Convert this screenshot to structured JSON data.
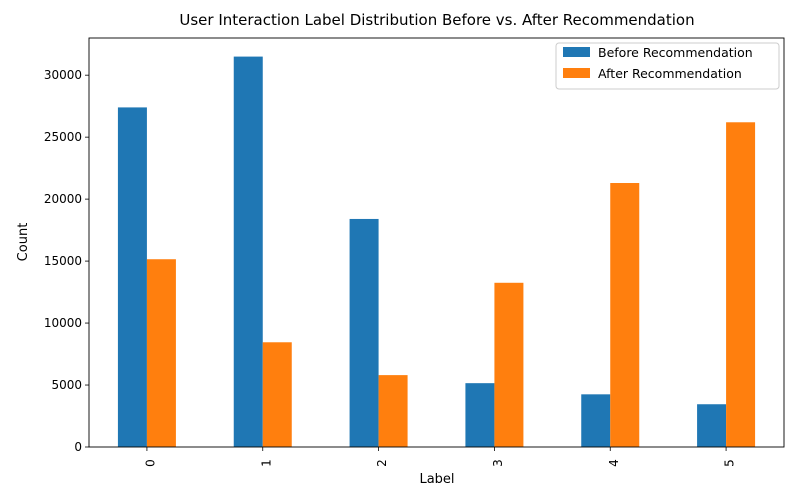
{
  "chart_data": {
    "type": "bar",
    "title": "User Interaction Label Distribution Before vs. After Recommendation",
    "xlabel": "Label",
    "ylabel": "Count",
    "categories": [
      "0",
      "1",
      "2",
      "3",
      "4",
      "5"
    ],
    "series": [
      {
        "name": "Before Recommendation",
        "values": [
          27400,
          31500,
          18400,
          5150,
          4250,
          3450
        ],
        "color": "#1f77b4"
      },
      {
        "name": "After Recommendation",
        "values": [
          15150,
          8450,
          5800,
          13250,
          21300,
          26200
        ],
        "color": "#ff7f0e"
      }
    ],
    "ylim": [
      0,
      33000
    ],
    "yticks": [
      0,
      5000,
      10000,
      15000,
      20000,
      25000,
      30000
    ],
    "grid": false,
    "legend": "top-right",
    "xtick_rotation": "vertical"
  }
}
